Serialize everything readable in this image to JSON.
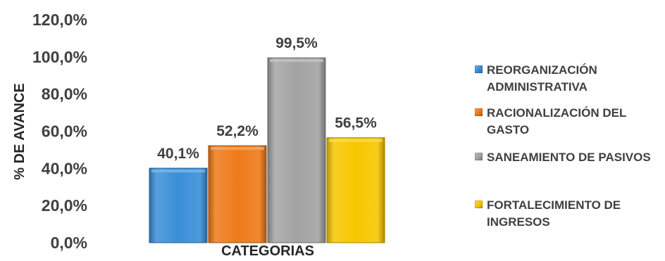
{
  "chart_data": {
    "type": "bar",
    "xlabel": "CATEGORIAS",
    "ylabel": "% DE AVANCE",
    "ylim": [
      0,
      120
    ],
    "yticks": [
      "0,0%",
      "20,0%",
      "40,0%",
      "60,0%",
      "80,0%",
      "100,0%",
      "120,0%"
    ],
    "grid": false,
    "legend_position": "right",
    "series": [
      {
        "name": "REORGANIZACIÓN ADMINISTRATIVA",
        "value": 40.1,
        "label": "40,1%",
        "color": "#3a8fd8"
      },
      {
        "name": "RACIONALIZACIÓN DEL GASTO",
        "value": 52.2,
        "label": "52,2%",
        "color": "#ef7a1a"
      },
      {
        "name": "SANEAMIENTO DE PASIVOS",
        "value": 99.5,
        "label": "99,5%",
        "color": "#a3a3a3"
      },
      {
        "name": "FORTALECIMIENTO DE INGRESOS",
        "value": 56.5,
        "label": "56,5%",
        "color": "#f7c600"
      }
    ]
  }
}
